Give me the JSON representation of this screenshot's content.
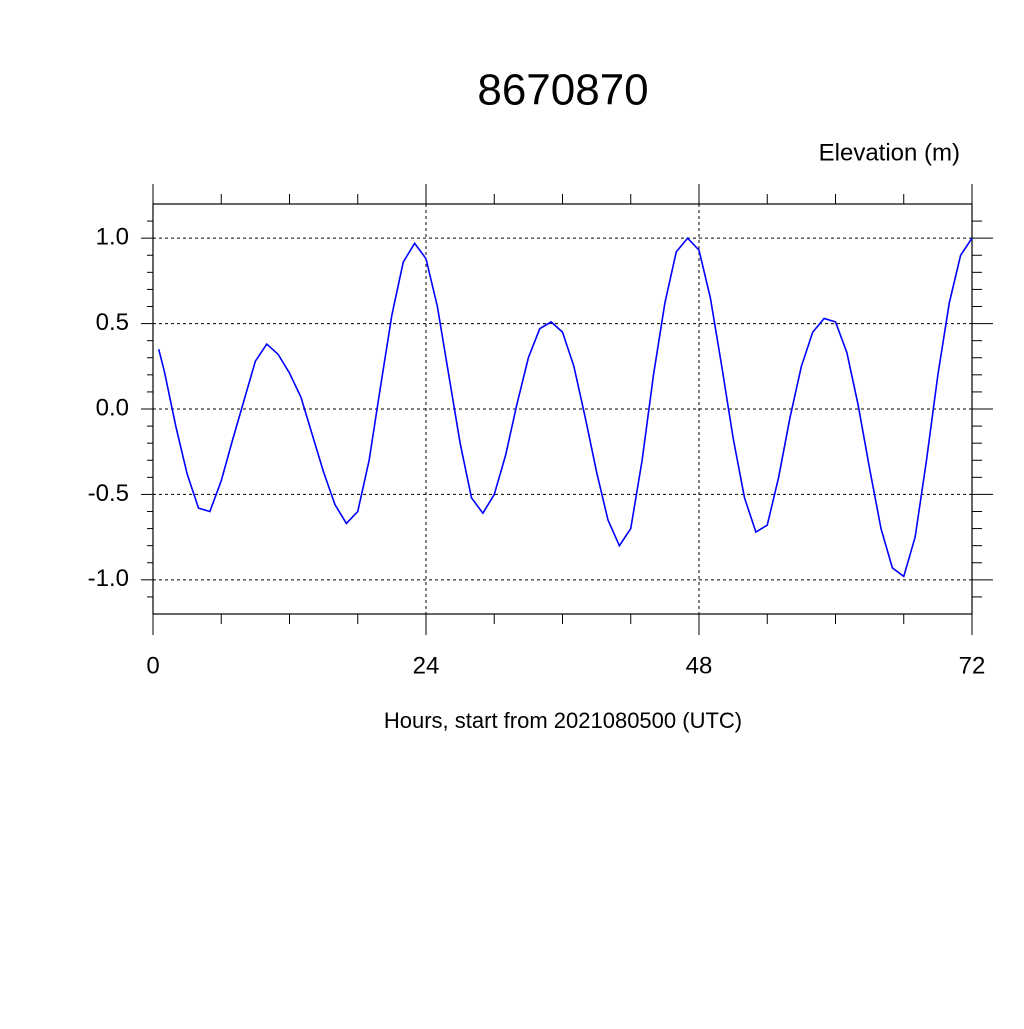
{
  "chart_data": {
    "type": "line",
    "title": "8670870",
    "y_label": "Elevation (m)",
    "x_label": "Hours, start from 2021080500 (UTC)",
    "x": [
      0.5,
      1,
      2,
      3,
      4,
      5,
      6,
      7,
      8,
      9,
      10,
      11,
      12,
      13,
      14,
      15,
      16,
      17,
      18,
      19,
      20,
      21,
      22,
      23,
      24,
      25,
      26,
      27,
      28,
      29,
      30,
      31,
      32,
      33,
      34,
      35,
      36,
      37,
      38,
      39,
      40,
      41,
      42,
      43,
      44,
      45,
      46,
      47,
      48,
      49,
      50,
      51,
      52,
      53,
      54,
      55,
      56,
      57,
      58,
      59,
      60,
      61,
      62,
      63,
      64,
      65,
      66,
      67,
      68,
      69,
      70,
      71,
      72
    ],
    "series": [
      {
        "name": "Elevation",
        "color": "#0000ff",
        "values": [
          0.35,
          0.22,
          -0.1,
          -0.38,
          -0.58,
          -0.6,
          -0.42,
          -0.18,
          0.05,
          0.28,
          0.38,
          0.32,
          0.21,
          0.07,
          -0.15,
          -0.37,
          -0.56,
          -0.67,
          -0.6,
          -0.3,
          0.13,
          0.55,
          0.86,
          0.97,
          0.88,
          0.6,
          0.2,
          -0.2,
          -0.52,
          -0.61,
          -0.5,
          -0.27,
          0.03,
          0.3,
          0.47,
          0.51,
          0.45,
          0.25,
          -0.05,
          -0.37,
          -0.65,
          -0.8,
          -0.7,
          -0.3,
          0.2,
          0.62,
          0.92,
          1.0,
          0.93,
          0.65,
          0.25,
          -0.17,
          -0.52,
          -0.72,
          -0.68,
          -0.4,
          -0.05,
          0.25,
          0.45,
          0.53,
          0.51,
          0.33,
          0.02,
          -0.35,
          -0.7,
          -0.93,
          -0.98,
          -0.75,
          -0.3,
          0.2,
          0.62,
          0.9,
          1.0
        ]
      }
    ],
    "xlim": [
      0,
      72
    ],
    "xticks": [
      0,
      24,
      48,
      72
    ],
    "xminorticks": [
      6,
      12,
      18,
      30,
      36,
      42,
      54,
      60,
      66
    ],
    "ylim": [
      -1.2,
      1.2
    ],
    "yticks": [
      {
        "value": -1.0,
        "label": "-1.0"
      },
      {
        "value": -0.5,
        "label": "-0.5"
      },
      {
        "value": 0,
        "label": "0.0"
      },
      {
        "value": 0.5,
        "label": "0.5"
      },
      {
        "value": 1.0,
        "label": "1.0"
      }
    ],
    "yminorticks": [
      -1.1,
      -0.9,
      -0.8,
      -0.7,
      -0.6,
      -0.4,
      -0.3,
      -0.2,
      -0.1,
      0.1,
      0.2,
      0.3,
      0.4,
      0.6,
      0.7,
      0.8,
      0.9,
      1.1
    ],
    "grid": true
  }
}
